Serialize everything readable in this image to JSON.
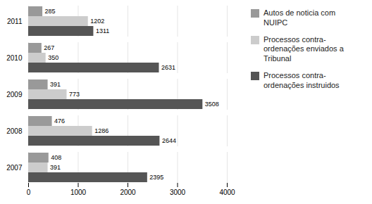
{
  "chart_data": {
    "type": "bar",
    "orientation": "horizontal",
    "categories": [
      "2007",
      "2008",
      "2009",
      "2010",
      "2011"
    ],
    "series": [
      {
        "name": "Autos de noticia com\nNUIPC",
        "color": "#999999",
        "values": [
          408,
          476,
          391,
          267,
          285
        ]
      },
      {
        "name": "Processos contra-\nordenações enviados a\nTribunal",
        "color": "#cccccc",
        "values": [
          391,
          1286,
          773,
          350,
          1202
        ]
      },
      {
        "name": "Processos contra-\nordenações instruidos",
        "color": "#555555",
        "values": [
          2395,
          2644,
          3508,
          2631,
          1311
        ]
      }
    ],
    "xlim": [
      0,
      4000
    ],
    "xticks": [
      0,
      1000,
      2000,
      3000,
      4000
    ],
    "grid": true,
    "data_labels": true,
    "legend": "right"
  }
}
